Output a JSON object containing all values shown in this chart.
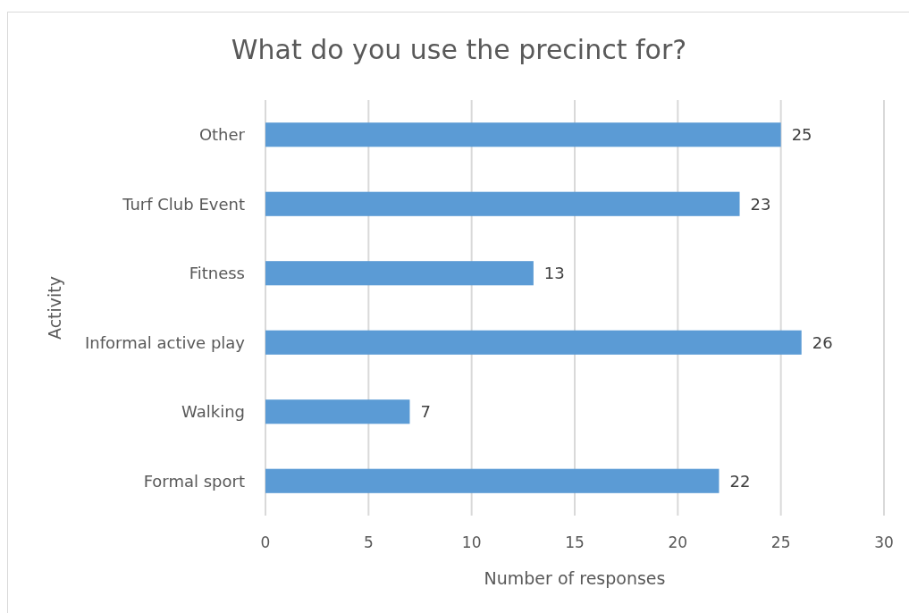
{
  "chart_data": {
    "type": "bar",
    "orientation": "horizontal",
    "title": "What do you use the precinct for?",
    "xlabel": "Number of responses",
    "ylabel": "Activity",
    "categories": [
      "Other",
      "Turf Club Event",
      "Fitness",
      "Informal active play",
      "Walking",
      "Formal sport"
    ],
    "values": [
      25,
      23,
      13,
      26,
      7,
      22
    ],
    "color": "#5b9bd5",
    "xlim": [
      0,
      30
    ],
    "xticks": [
      0,
      5,
      10,
      15,
      20,
      25,
      30
    ],
    "grid": "x",
    "data_labels": true
  }
}
